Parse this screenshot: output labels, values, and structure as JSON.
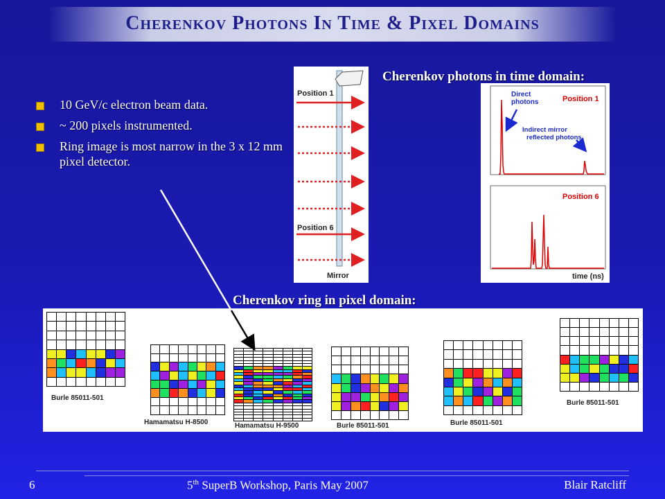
{
  "title": "Cherenkov Photons In Time & Pixel Domains",
  "bullets": [
    "10 GeV/c electron beam data.",
    "~ 200 pixels instrumented.",
    "Ring image is most narrow in the 3 x 12 mm pixel detector."
  ],
  "time_heading": "Cherenkov photons in time domain:",
  "pixel_heading": "Cherenkov ring in pixel domain:",
  "bar_figure": {
    "position1": "Position 1",
    "position6": "Position 6",
    "mirror": "Mirror"
  },
  "hist_figure": {
    "direct": "Direct photons",
    "indirect": "Indirect mirror reflected photons",
    "position1": "Position 1",
    "position6": "Position 6",
    "xlabel": "time (ns)"
  },
  "detectors": [
    {
      "label": "Burle 85011-501"
    },
    {
      "label": "Hamamatsu  H-8500"
    },
    {
      "label": "Hamamatsu  H-9500"
    },
    {
      "label": "Burle 85011-501"
    },
    {
      "label": "Burle 85011-501"
    },
    {
      "label": "Burle 85011-501"
    }
  ],
  "footer": {
    "page": "6",
    "workshop_ord": "5",
    "workshop_sup": "th",
    "workshop_rest": " SuperB Workshop, Paris  May 2007",
    "author": "Blair Ratcliff"
  },
  "colors": {
    "background": "#1a1ab4",
    "title_text": "#1c1f8a",
    "bullet": "#f0c000",
    "arrow": "#e02020",
    "histogram": "#e00000",
    "annotation": "#1a2ad0"
  }
}
